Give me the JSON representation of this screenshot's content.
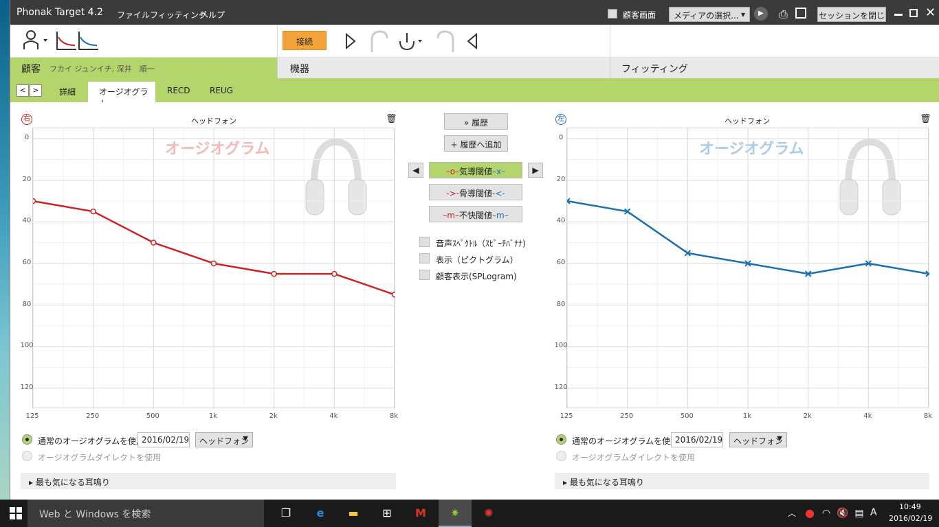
{
  "app": {
    "title": "Phonak Target 4.2",
    "menu": [
      "ファイル",
      "フィッティング",
      "ヘルプ"
    ],
    "client_screen_label": "顧客画面",
    "media_select": "メディアの選択...",
    "close_session": "セッションを閉じる"
  },
  "toolbar": {
    "connect": "接続"
  },
  "sections": {
    "client_label": "顧客",
    "client_name": "フカイ ジュンイチ, 深井　順一",
    "device_label": "機器",
    "fitting_label": "フィッティング"
  },
  "tabs": [
    "詳細",
    "オージオグラム",
    "RECD",
    "REUG"
  ],
  "audiogram": {
    "right": {
      "side": "右",
      "title": "ヘッドフォン",
      "watermark": "オージオグラム",
      "color": "#cc2222",
      "normal_label": "通常のオージオグラムを使用",
      "direct_label": "オージオグラムダイレクトを使用",
      "date": "2016/02/19",
      "transducer": "ヘッドフォン",
      "tinnitus": "最も気になる耳鳴り"
    },
    "left": {
      "side": "左",
      "title": "ヘッドフォン",
      "watermark": "オージオグラム",
      "color": "#1a6fae",
      "normal_label": "通常のオージオグラムを使用",
      "direct_label": "オージオグラムダイレクトを使用",
      "date": "2016/02/19",
      "transducer": "ヘッドフォン",
      "tinnitus": "最も気になる耳鳴り"
    },
    "middle": {
      "history": "履歴",
      "add_history": "履歴へ追加",
      "air": "気導閾値",
      "bone": "骨導閾値",
      "ucl": "不快閾値",
      "options": [
        "音声ｽﾍﾟｸﾄﾙ（ｽﾋﾟｰﾁﾊﾞﾅﾅ)",
        "表示（ピクトグラム）",
        "顧客表示(SPLogram)"
      ]
    }
  },
  "chart_data": [
    {
      "type": "line",
      "x": [
        "125",
        "250",
        "500",
        "1k",
        "2k",
        "4k",
        "8k"
      ],
      "y_ticks": [
        0,
        20,
        40,
        60,
        80,
        100,
        120
      ],
      "ylim": [
        -5,
        130
      ],
      "y_inverted": true,
      "grid": true,
      "series": [
        {
          "values": [
            30,
            35,
            50,
            60,
            65,
            65,
            75
          ]
        }
      ]
    },
    {
      "type": "line",
      "x": [
        "125",
        "250",
        "500",
        "1k",
        "2k",
        "4k",
        "8k"
      ],
      "y_ticks": [
        0,
        20,
        40,
        60,
        80,
        100,
        120
      ],
      "ylim": [
        -5,
        130
      ],
      "y_inverted": true,
      "grid": true,
      "series": [
        {
          "values": [
            30,
            35,
            55,
            60,
            65,
            60,
            65
          ]
        }
      ]
    }
  ],
  "taskbar": {
    "search_placeholder": "Web と Windows を検索",
    "ime": "A",
    "time": "10:49",
    "date": "2016/02/19"
  }
}
